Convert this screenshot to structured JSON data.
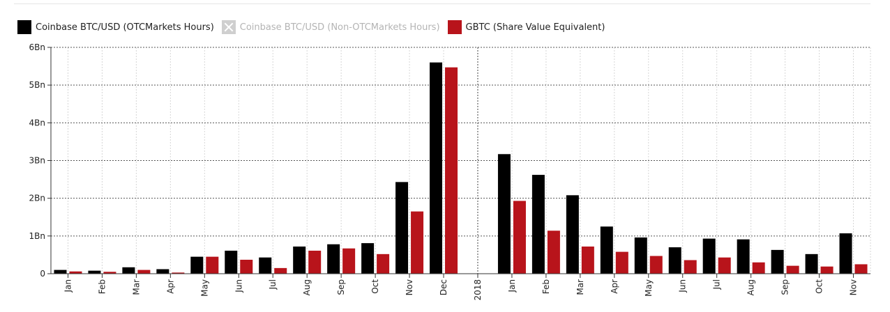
{
  "legend": {
    "items": [
      {
        "label": "Coinbase BTC/USD (OTCMarkets Hours)",
        "color": "#000000",
        "active": true
      },
      {
        "label": "Coinbase BTC/USD (Non-OTCMarkets Hours)",
        "color": "#cfcfcf",
        "active": false
      },
      {
        "label": "GBTC (Share Value Equivalent)",
        "color": "#b8141b",
        "active": true
      }
    ]
  },
  "chart_data": {
    "type": "bar",
    "categories": [
      "Jan",
      "Feb",
      "Mar",
      "Apr",
      "May",
      "Jun",
      "Jul",
      "Aug",
      "Sep",
      "Oct",
      "Nov",
      "Dec",
      "2018",
      "Jan",
      "Feb",
      "Mar",
      "Apr",
      "May",
      "Jun",
      "Jul",
      "Aug",
      "Sep",
      "Oct",
      "Nov"
    ],
    "series": [
      {
        "name": "Coinbase BTC/USD (OTCMarkets Hours)",
        "color": "#000000",
        "values": [
          0.1,
          0.08,
          0.17,
          0.12,
          0.45,
          0.61,
          0.43,
          0.72,
          0.78,
          0.81,
          2.43,
          5.6,
          0,
          3.17,
          2.62,
          2.08,
          1.25,
          0.96,
          0.7,
          0.93,
          0.91,
          0.63,
          0.52,
          1.07
        ]
      },
      {
        "name": "GBTC (Share Value Equivalent)",
        "color": "#b8141b",
        "values": [
          0.06,
          0.05,
          0.1,
          0.03,
          0.45,
          0.37,
          0.15,
          0.61,
          0.67,
          0.52,
          1.65,
          5.47,
          0,
          1.93,
          1.14,
          0.72,
          0.58,
          0.47,
          0.36,
          0.43,
          0.3,
          0.21,
          0.19,
          0.25
        ]
      }
    ],
    "yticks": [
      "0",
      "1Bn",
      "2Bn",
      "3Bn",
      "4Bn",
      "5Bn",
      "6Bn"
    ],
    "ylim": [
      0,
      6
    ],
    "unit_note": "Bn",
    "grid": true,
    "legend_position": "top-left",
    "year_divider_index": 12
  }
}
